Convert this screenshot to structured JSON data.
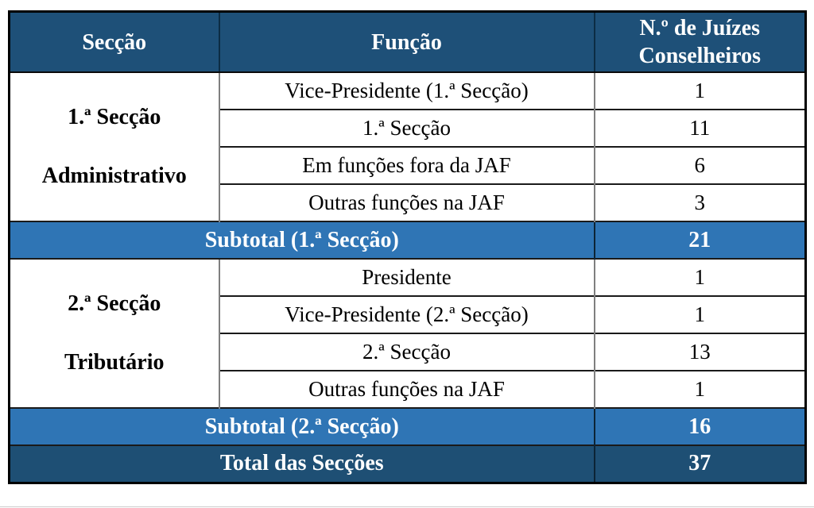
{
  "colors": {
    "header_bg": "#1e5078",
    "subtotal_bg": "#2f75b5",
    "total_bg": "#1e4f74"
  },
  "table": {
    "headers": {
      "seccao": "Secção",
      "funcao": "Função",
      "juizes": "N.º de Juízes Conselheiros"
    },
    "group1": {
      "section_title": "1.ª Secção",
      "section_subtitle": "Administrativo",
      "rows": [
        {
          "funcao": "Vice-Presidente (1.ª Secção)",
          "count": "1"
        },
        {
          "funcao": "1.ª Secção",
          "count": "11"
        },
        {
          "funcao": "Em funções fora da JAF",
          "count": "6"
        },
        {
          "funcao": "Outras funções na JAF",
          "count": "3"
        }
      ],
      "subtotal_label": "Subtotal (1.ª Secção)",
      "subtotal_value": "21"
    },
    "group2": {
      "section_title": "2.ª Secção",
      "section_subtitle": "Tributário",
      "rows": [
        {
          "funcao": "Presidente",
          "count": "1"
        },
        {
          "funcao": "Vice-Presidente (2.ª Secção)",
          "count": "1"
        },
        {
          "funcao": "2.ª Secção",
          "count": "13"
        },
        {
          "funcao": "Outras funções na JAF",
          "count": "1"
        }
      ],
      "subtotal_label": "Subtotal (2.ª Secção)",
      "subtotal_value": "16"
    },
    "total_label": "Total das Secções",
    "total_value": "37"
  }
}
